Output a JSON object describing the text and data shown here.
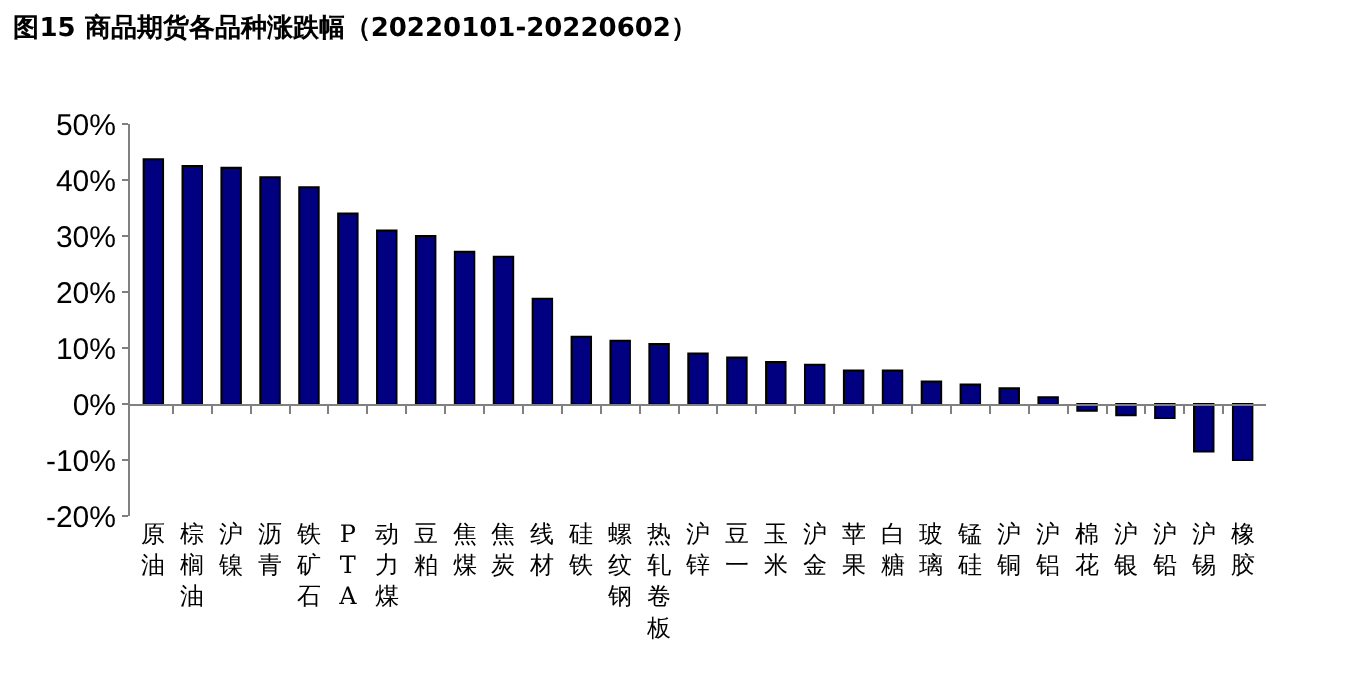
{
  "chart_data": {
    "type": "bar",
    "title": "图15 商品期货各品种涨跌幅（20220101-20220602）",
    "categories": [
      "原油",
      "棕榈油",
      "沪镍",
      "沥青",
      "铁矿石",
      "PTA",
      "动力煤",
      "豆粕",
      "焦煤",
      "焦炭",
      "线材",
      "硅铁",
      "螺纹钢",
      "热轧卷板",
      "沪锌",
      "豆一",
      "玉米",
      "沪金",
      "苹果",
      "白糖",
      "玻璃",
      "锰硅",
      "沪铜",
      "沪铝",
      "棉花",
      "沪银",
      "沪铅",
      "沪锡",
      "橡胶"
    ],
    "values": [
      43.7,
      42.5,
      42.2,
      40.5,
      38.7,
      34,
      31,
      30,
      27.2,
      26.3,
      18.8,
      12,
      11.3,
      10.7,
      9,
      8.3,
      7.5,
      7,
      6,
      6,
      4,
      3.5,
      2.8,
      1.2,
      -1.2,
      -2,
      -2.5,
      -8.5,
      -10
    ],
    "color": "#000080",
    "ylim": [
      -20,
      50
    ],
    "yticks": [
      {
        "value": -20,
        "label": "-20%"
      },
      {
        "value": -10,
        "label": "-10%"
      },
      {
        "value": 0,
        "label": "0%"
      },
      {
        "value": 10,
        "label": "10%"
      },
      {
        "value": 20,
        "label": "20%"
      },
      {
        "value": 30,
        "label": "30%"
      },
      {
        "value": 40,
        "label": "40%"
      },
      {
        "value": 50,
        "label": "50%"
      }
    ],
    "legend": false
  }
}
